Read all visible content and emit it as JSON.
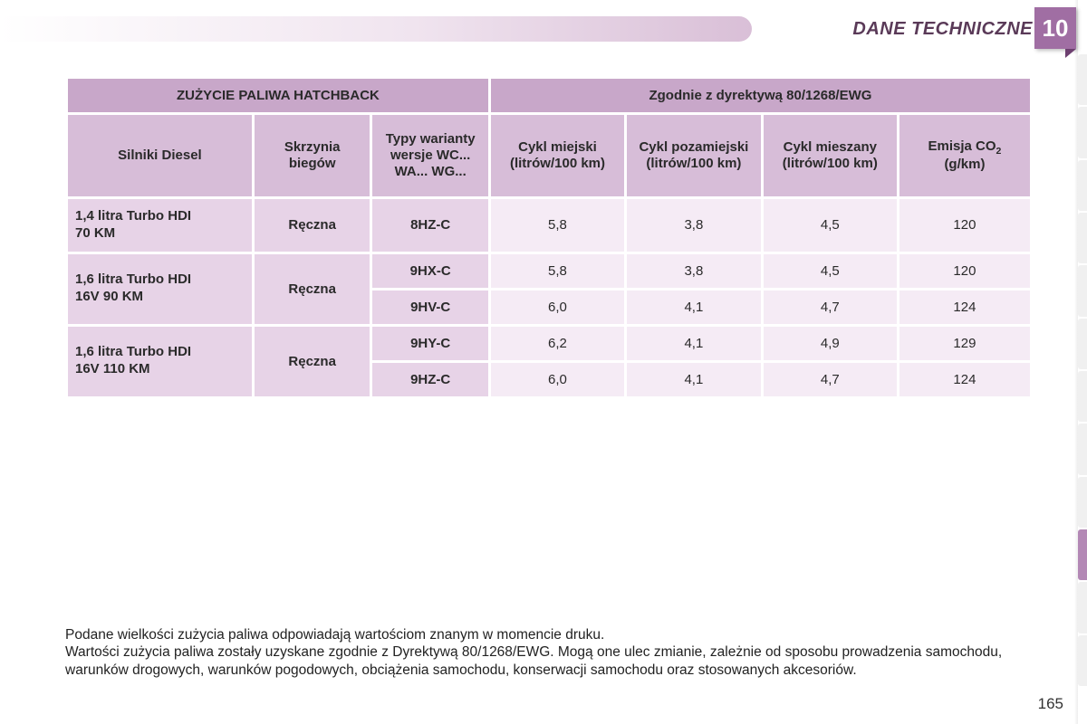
{
  "header": {
    "section_title": "DANE TECHNICZNE",
    "chapter_number": "10"
  },
  "page_number": "165",
  "table": {
    "header_left": "ZUŻYCIE PALIWA HATCHBACK",
    "header_right": "Zgodnie z dyrektywą 80/1268/EWG",
    "columns": [
      "Silniki Diesel",
      "Skrzynia biegów",
      "Typy warianty wersje WC... WA... WG...",
      "Cykl miejski (litrów/100 km)",
      "Cykl pozamiejski (litrów/100 km)",
      "Cykl mieszany (litrów/100 km)",
      "Emisja CO"
    ],
    "co2_unit": " (g/km)",
    "rows": [
      {
        "engine": "1,4 litra Turbo HDI 70 KM",
        "gearbox": "Ręczna",
        "variants": [
          {
            "type": "8HZ-C",
            "city": "5,8",
            "road": "3,8",
            "mixed": "4,5",
            "co2": "120"
          }
        ]
      },
      {
        "engine": "1,6 litra Turbo HDI 16V 90 KM",
        "gearbox": "Ręczna",
        "variants": [
          {
            "type": "9HX-C",
            "city": "5,8",
            "road": "3,8",
            "mixed": "4,5",
            "co2": "120"
          },
          {
            "type": "9HV-C",
            "city": "6,0",
            "road": "4,1",
            "mixed": "4,7",
            "co2": "124"
          }
        ]
      },
      {
        "engine": "1,6 litra Turbo HDI 16V 110 KM",
        "gearbox": "Ręczna",
        "variants": [
          {
            "type": "9HY-C",
            "city": "6,2",
            "road": "4,1",
            "mixed": "4,9",
            "co2": "129"
          },
          {
            "type": "9HZ-C",
            "city": "6,0",
            "road": "4,1",
            "mixed": "4,7",
            "co2": "124"
          }
        ]
      }
    ]
  },
  "footnote": {
    "line1": "Podane wielkości zużycia paliwa odpowiadają wartościom znanym w momencie druku.",
    "line2": "Wartości zużycia paliwa zostały uzyskane zgodnie z Dyrektywą 80/1268/EWG. Mogą one ulec zmianie, zależnie od sposobu prowadzenia samochodu, warunków drogowych, warunków pogodowych, obciążenia samochodu, konserwacji samochodu oraz stosowanych akcesoriów."
  },
  "colors": {
    "tab_bg": "#a06ea3",
    "header_row": "#c8a7c9",
    "subhead_row": "#d7bdd8",
    "label_cell": "#e7d3e7",
    "value_cell": "#f5ebf5"
  }
}
